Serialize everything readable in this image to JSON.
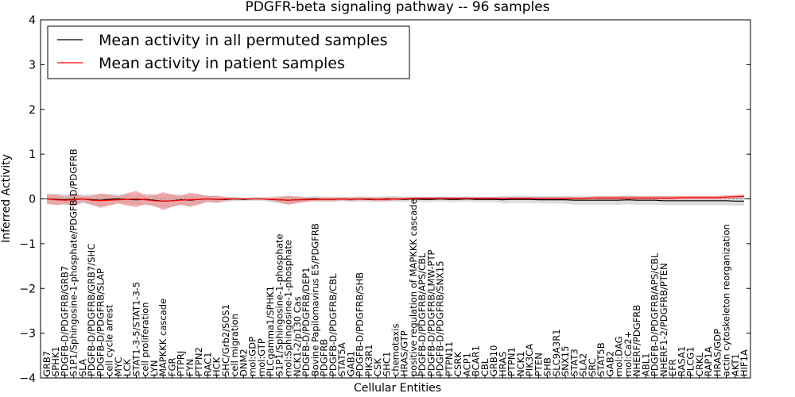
{
  "chart_data": {
    "type": "line",
    "title": "PDGFR-beta signaling pathway -- 96 samples",
    "xlabel": "Cellular Entities",
    "ylabel": "Inferred Activity",
    "ylim": [
      -4,
      4
    ],
    "yticks": [
      "−4",
      "−3",
      "−2",
      "−1",
      "0",
      "1",
      "2",
      "3",
      "4"
    ],
    "ytick_values": [
      -4,
      -3,
      -2,
      -1,
      0,
      1,
      2,
      3,
      4
    ],
    "legend_position": "top-left",
    "categories": [
      "GRB7",
      "SPHK1",
      "PDGFB-D/PDGFRB/GRB7",
      "S1P1/Sphingosine-1-phosphate/PDGFB-D/PDGFRB",
      "SLA",
      "PDGFB-D/PDGFRB/GRB7/SHC",
      "PDGFB-D/PDGFRB/SLAP",
      "cell cycle arrest",
      "MYC",
      "LCK",
      "STAT1-3-5/STAT1-3-5",
      "cell proliferation",
      "LYN",
      "MAPKKK cascade",
      "FGR",
      "PTPRJ",
      "FYN",
      "PTPN2",
      "RAC1",
      "HCK",
      "SHC/Grb2/SOS1",
      "cell migration",
      "DNM2",
      "mol:GDP",
      "mol:GTP",
      "PLCgamma1/SPHK1",
      "S1P1/Sphingosine-1-phosphate",
      "mol:Sphingosine-1-phosphate",
      "NCK1-2/p130 Cas",
      "PDGFB-D/PDGFRB/DEP1",
      "Bovine Papilomavirus E5/PDGFRB",
      "PDGFRB",
      "PDGFB-D/PDGFRB/CBL",
      "STAT5A",
      "GAB1",
      "PDGFB-D/PDGFRB/SHB",
      "PIK3R1",
      "CSK",
      "SHC1",
      "chemotaxis",
      "HRAS/GTP",
      "positive regulation of MAPKKK cascade",
      "PDGFB-D/PDGFRB/APS/CBL",
      "PDGFB-D/PDGFRB/LMW-PTP",
      "PDGFB-D/PDGFRB/SNX15",
      "PTPN11",
      "CSRK",
      "ACP1",
      "BCAR1",
      "CBL",
      "GRB10",
      "HRAS",
      "PTPN1",
      "NCK1",
      "PIK3CA",
      "PTEN",
      "SHB",
      "SLC9A3R1",
      "SNX15",
      "STAT3",
      "SLA2",
      "SRC",
      "STAT5B",
      "GAB2",
      "mol:DAG",
      "mol:Ca2+",
      "NHERF/PDGFRB",
      "ABL1",
      "PDGFB-D/PDGFRB/APS/CBL",
      "NHERF1-2/PDGFRB/PTEN",
      "EFR",
      "RASA1",
      "PLCG1",
      "CRKL",
      "RAP1A",
      "HRAS/GDP",
      "actin cytoskeleton reorganization",
      "AKT1",
      "HIF1A"
    ],
    "xtick_labels": [
      "GRB7",
      "SPHK1",
      "PDGFB-D/PDGFRB/GRB7",
      "S1P1/Sphingosine-1-phosphate/PDGFB-D/PDGFRB",
      "SLA",
      "PDGFB-D/PDGFRB/GRB7/SHC",
      "PDGFB-D/PDGFRB/SLAP",
      "cell cycle arrest",
      "MYC",
      "LCK",
      "STAT1-3-5/STAT1-3-5",
      "cell proliferation",
      "LYN",
      "MAPKKK cascade",
      "FGR",
      "PTPRJ",
      "FYN",
      "PTPN2",
      "RAC1",
      "HCK",
      "SHC/Grb2/SOS1",
      "cell migration",
      "DNM2",
      "mol:GDP",
      "mol:GTP",
      "PLCgamma1/SPHK1",
      "S1P1/Sphingosine-1-phosphate",
      "mol:Sphingosine-1-phosphate",
      "NCK1-2/p130 Cas",
      "PDGFB-D/PDGFRB/DEP1",
      "Bovine Papilomavirus E5/PDGFRB",
      "PDGFRB",
      "PDGFB-D/PDGFRB/CBL",
      "STAT5A",
      "GAB1",
      "PDGFB-D/PDGFRB/SHB",
      "PIK3R1",
      "CSK",
      "SHC1",
      "chemotaxis",
      "HRAS/GTP",
      "positive regulation of MAPKKK cascade",
      "PDGFB-D/PDGFRB/APS/CBL",
      "PDGFB-D/PDGFRB/LMW-PTP",
      "PDGFB-D/PDGFRB/SNX15",
      "PTPN11",
      "CSRK",
      "ACP1",
      "BCAR1",
      "CBL",
      "GRB10",
      "HRAS",
      "PTPN1",
      "NCK1",
      "PIK3CA",
      "PTEN",
      "SHB",
      "SLC9A3R1",
      "SNX15",
      "STAT3",
      "SLA2",
      "SRC",
      "STAT5B",
      "GAB2",
      "mol:DAG",
      "mol:Ca2+",
      "NHERF/PDGFRB",
      "ABL1",
      "PDGFB-D/PDGFRB/APS/CBL",
      "NHERF1-2/PDGFRB/PTEN",
      "EFR",
      "RASA1",
      "PLCG1",
      "CRKL",
      "RAP1A",
      "HRAS/GDP",
      "actin cytoskeleton reorganization",
      "AKT1",
      "HIF1A"
    ],
    "series": [
      {
        "name": "Mean activity in all permuted samples",
        "color": "#000000",
        "band_color": "#bfbfbf",
        "values": [
          0.0,
          -0.01,
          -0.02,
          -0.01,
          0.0,
          -0.02,
          -0.03,
          -0.01,
          0.0,
          -0.01,
          -0.02,
          -0.01,
          -0.03,
          -0.05,
          -0.04,
          -0.02,
          -0.03,
          -0.01,
          0.0,
          -0.01,
          -0.01,
          0.0,
          -0.01,
          0.0,
          0.0,
          -0.01,
          -0.02,
          -0.03,
          -0.02,
          -0.01,
          0.0,
          -0.01,
          -0.01,
          0.0,
          -0.01,
          0.0,
          -0.01,
          -0.01,
          0.0,
          0.0,
          -0.01,
          0.0,
          -0.01,
          -0.01,
          0.0,
          -0.01,
          -0.01,
          0.0,
          -0.01,
          -0.01,
          -0.01,
          -0.02,
          -0.01,
          -0.01,
          -0.01,
          -0.02,
          -0.02,
          -0.02,
          -0.02,
          -0.03,
          -0.03,
          -0.03,
          -0.03,
          -0.03,
          -0.03,
          -0.02,
          -0.03,
          -0.03,
          -0.03,
          -0.04,
          -0.04,
          -0.04,
          -0.04,
          -0.04,
          -0.04,
          -0.04,
          -0.04,
          -0.05,
          -0.05
        ],
        "band": [
          0.12,
          0.12,
          0.12,
          0.12,
          0.1,
          0.12,
          0.14,
          0.12,
          0.1,
          0.12,
          0.12,
          0.12,
          0.14,
          0.15,
          0.14,
          0.12,
          0.12,
          0.1,
          0.08,
          0.08,
          0.06,
          0.05,
          0.04,
          0.04,
          0.04,
          0.06,
          0.08,
          0.1,
          0.08,
          0.06,
          0.06,
          0.06,
          0.06,
          0.05,
          0.06,
          0.06,
          0.06,
          0.06,
          0.06,
          0.06,
          0.06,
          0.05,
          0.06,
          0.06,
          0.06,
          0.06,
          0.06,
          0.06,
          0.06,
          0.06,
          0.06,
          0.08,
          0.08,
          0.08,
          0.08,
          0.08,
          0.08,
          0.08,
          0.09,
          0.1,
          0.1,
          0.1,
          0.1,
          0.1,
          0.1,
          0.1,
          0.1,
          0.1,
          0.1,
          0.1,
          0.1,
          0.1,
          0.1,
          0.1,
          0.1,
          0.1,
          0.1,
          0.1,
          0.1
        ]
      },
      {
        "name": "Mean activity in patient samples",
        "color": "#ff0000",
        "band_color": "#f08080",
        "values": [
          0.0,
          -0.02,
          -0.03,
          -0.02,
          0.0,
          -0.03,
          -0.04,
          -0.03,
          -0.02,
          -0.01,
          0.0,
          -0.02,
          -0.04,
          -0.05,
          -0.04,
          -0.03,
          -0.02,
          -0.01,
          0.0,
          -0.01,
          0.0,
          0.0,
          0.0,
          0.0,
          0.0,
          -0.01,
          -0.02,
          -0.03,
          -0.02,
          -0.02,
          -0.01,
          -0.01,
          -0.01,
          0.0,
          -0.01,
          0.0,
          0.0,
          -0.01,
          -0.01,
          0.0,
          0.0,
          0.01,
          0.01,
          0.01,
          0.01,
          0.01,
          0.01,
          0.01,
          0.01,
          0.01,
          0.01,
          0.01,
          0.01,
          0.01,
          0.01,
          0.01,
          0.01,
          0.01,
          0.01,
          0.01,
          0.01,
          0.02,
          0.02,
          0.02,
          0.02,
          0.02,
          0.02,
          0.02,
          0.02,
          0.02,
          0.02,
          0.03,
          0.03,
          0.03,
          0.03,
          0.03,
          0.04,
          0.05,
          0.06
        ],
        "band": [
          0.1,
          0.12,
          0.08,
          0.14,
          0.06,
          0.1,
          0.16,
          0.12,
          0.08,
          0.14,
          0.18,
          0.1,
          0.12,
          0.2,
          0.14,
          0.1,
          0.16,
          0.12,
          0.06,
          0.08,
          0.04,
          0.02,
          0.01,
          0.01,
          0.01,
          0.03,
          0.06,
          0.1,
          0.07,
          0.05,
          0.04,
          0.04,
          0.04,
          0.03,
          0.04,
          0.03,
          0.03,
          0.04,
          0.04,
          0.03,
          0.03,
          0.03,
          0.03,
          0.03,
          0.03,
          0.03,
          0.03,
          0.03,
          0.03,
          0.03,
          0.03,
          0.03,
          0.03,
          0.03,
          0.03,
          0.03,
          0.03,
          0.03,
          0.03,
          0.03,
          0.03,
          0.03,
          0.04,
          0.04,
          0.04,
          0.04,
          0.04,
          0.04,
          0.04,
          0.04,
          0.04,
          0.04,
          0.04,
          0.04,
          0.04,
          0.04,
          0.04,
          0.04,
          0.04
        ]
      }
    ]
  }
}
